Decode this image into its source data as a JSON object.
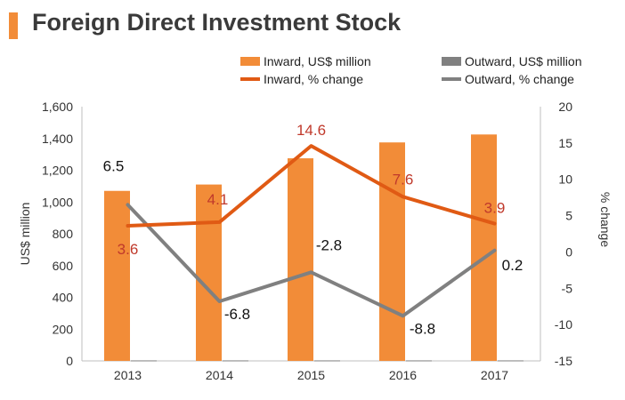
{
  "title": "Foreign Direct Investment Stock",
  "colors": {
    "accent": "#f28c38",
    "inward_bar": "#f28c38",
    "outward_bar": "#808080",
    "inward_line": "#e05a14",
    "outward_line": "#808080",
    "inward_label": "#c0392b",
    "outward_label": "#111111",
    "title_text": "#3a3a3a"
  },
  "legend": {
    "inward_usd": "Inward, US$ million",
    "outward_usd": "Outward, US$ million",
    "inward_pct": "Inward, % change",
    "outward_pct": "Outward, % change"
  },
  "chart_data": {
    "type": "bar",
    "categories": [
      "2013",
      "2014",
      "2015",
      "2016",
      "2017"
    ],
    "y_left": {
      "label": "US$ million",
      "range": [
        0,
        1600
      ],
      "ticks": [
        "0",
        "200",
        "400",
        "600",
        "800",
        "1,000",
        "1,200",
        "1,400",
        "1,600"
      ]
    },
    "y_right": {
      "label": "% change",
      "range": [
        -15,
        20
      ],
      "ticks": [
        "-15",
        "-10",
        "-5",
        "0",
        "5",
        "10",
        "15",
        "20"
      ]
    },
    "legend_position": "top-right",
    "grid": false,
    "series": [
      {
        "name": "Inward, US$ million",
        "type": "bar",
        "axis": "left",
        "values": [
          1070,
          1110,
          1275,
          1375,
          1425
        ]
      },
      {
        "name": "Outward, US$ million",
        "type": "bar",
        "axis": "left",
        "values": [
          3,
          3,
          3,
          3,
          3
        ]
      },
      {
        "name": "Inward, % change",
        "type": "line",
        "axis": "right",
        "values": [
          3.6,
          4.1,
          14.6,
          7.6,
          3.9
        ],
        "labels": [
          "3.6",
          "4.1",
          "14.6",
          "7.6",
          "3.9"
        ]
      },
      {
        "name": "Outward, % change",
        "type": "line",
        "axis": "right",
        "values": [
          6.5,
          -6.8,
          -2.8,
          -8.8,
          0.2
        ],
        "labels": [
          "6.5",
          "-6.8",
          "-2.8",
          "-8.8",
          "0.2"
        ]
      }
    ]
  }
}
